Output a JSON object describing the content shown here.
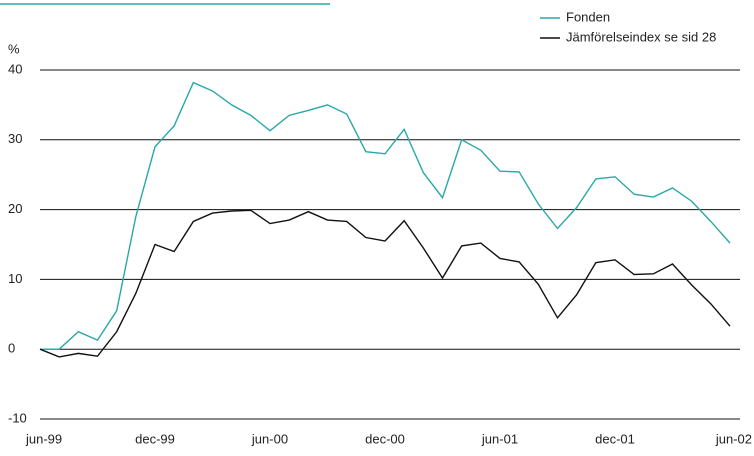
{
  "chart_data": {
    "type": "line",
    "y_label": "%",
    "categories": [
      "jun-99",
      null,
      null,
      null,
      null,
      null,
      "dec-99",
      null,
      null,
      null,
      null,
      null,
      "jun-00",
      null,
      null,
      null,
      null,
      null,
      "dec-00",
      null,
      null,
      null,
      null,
      null,
      "jun-01",
      null,
      null,
      null,
      null,
      null,
      "dec-01",
      null,
      null,
      null,
      null,
      null,
      "jun-02"
    ],
    "series": [
      {
        "name": "Fonden",
        "color": "#2aa8a8",
        "values": [
          0,
          0,
          2.5,
          1.3,
          5.5,
          19,
          29,
          32,
          38.2,
          37,
          35,
          33.5,
          31.3,
          33.5,
          34.2,
          35,
          33.7,
          28.3,
          28,
          31.5,
          25.3,
          21.7,
          30,
          28.5,
          25.5,
          25.4,
          20.8,
          17.3,
          20.3,
          24.4,
          24.7,
          22.2,
          21.8,
          23.1,
          21.2,
          18.3,
          15.2
        ]
      },
      {
        "name": "Jämförelseindex se sid 28",
        "color": "#111111",
        "values": [
          0,
          -1.1,
          -0.6,
          -1,
          2.5,
          8,
          15,
          14,
          18.3,
          19.5,
          19.8,
          19.9,
          18,
          18.5,
          19.7,
          18.5,
          18.3,
          16,
          15.5,
          18.4,
          14.5,
          10.2,
          14.8,
          15.2,
          13,
          12.5,
          9.3,
          4.5,
          7.8,
          12.4,
          12.8,
          10.7,
          10.8,
          12.2,
          9.2,
          6.5,
          3.3
        ]
      }
    ],
    "ylim": [
      -10,
      40
    ],
    "yticks": [
      -10,
      0,
      10,
      20,
      30,
      40
    ],
    "grid": true,
    "legend": "top-right"
  }
}
